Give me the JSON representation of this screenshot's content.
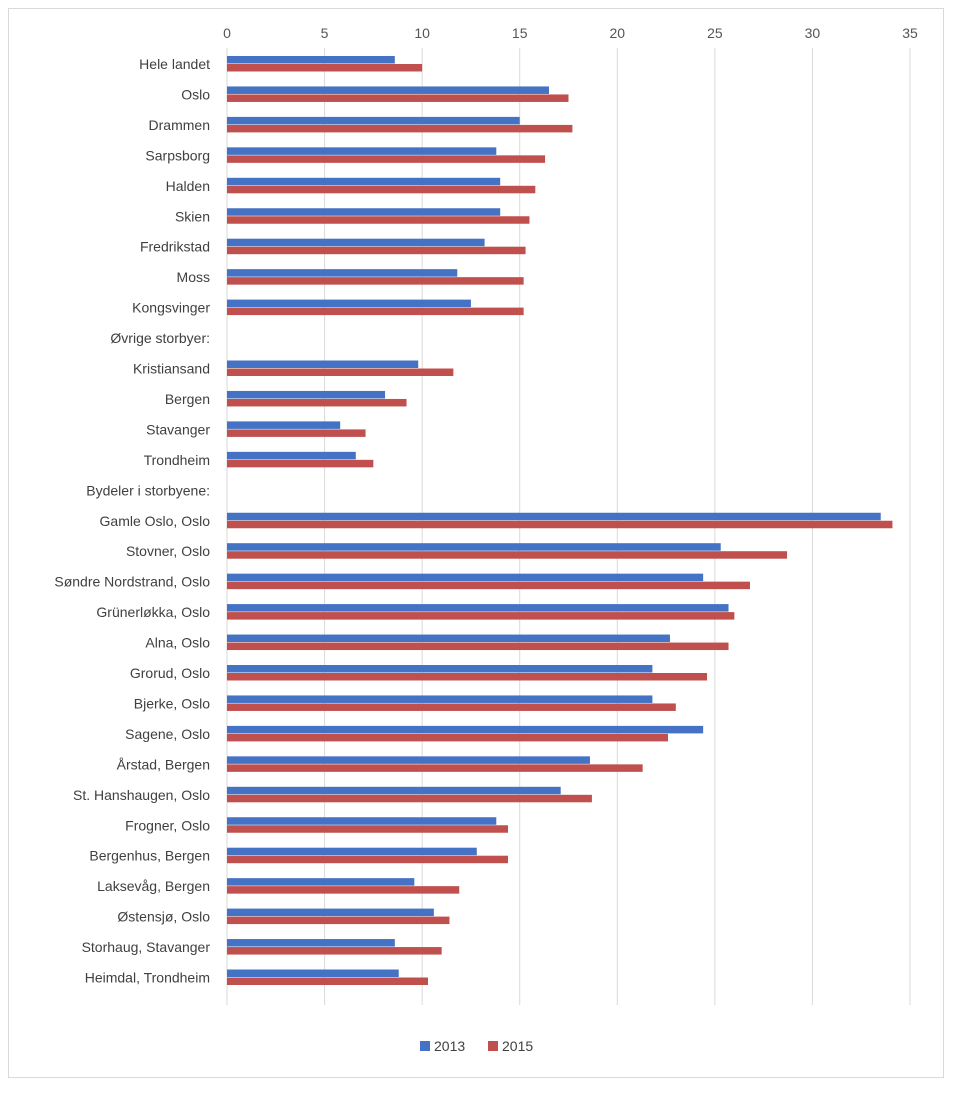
{
  "chart_data": {
    "type": "bar",
    "orientation": "horizontal",
    "title": "",
    "xlabel": "",
    "ylabel": "",
    "xlim": [
      0,
      35
    ],
    "xticks": [
      0,
      5,
      10,
      15,
      20,
      25,
      30,
      35
    ],
    "grid": "vertical",
    "legend_position": "bottom",
    "categories": [
      "Hele landet",
      "Oslo",
      "Drammen",
      "Sarpsborg",
      "Halden",
      "Skien",
      "Fredrikstad",
      "Moss",
      "Kongsvinger",
      "Øvrige storbyer:",
      "Kristiansand",
      "Bergen",
      "Stavanger",
      "Trondheim",
      "Bydeler i storbyene:",
      "Gamle Oslo, Oslo",
      "Stovner, Oslo",
      "Søndre Nordstrand, Oslo",
      "Grünerløkka, Oslo",
      "Alna, Oslo",
      "Grorud, Oslo",
      "Bjerke, Oslo",
      "Sagene, Oslo",
      "Årstad, Bergen",
      "St. Hanshaugen, Oslo",
      "Frogner, Oslo",
      "Bergenhus, Bergen",
      "Laksevåg, Bergen",
      "Østensjø, Oslo",
      "Storhaug, Stavanger",
      "Heimdal, Trondheim"
    ],
    "series": [
      {
        "name": "2013",
        "color": "#4472c4",
        "values": [
          8.6,
          16.5,
          15,
          13.8,
          14,
          14,
          13.2,
          11.8,
          12.5,
          null,
          9.8,
          8.1,
          5.8,
          6.6,
          null,
          33.5,
          25.3,
          24.4,
          25.7,
          22.7,
          21.8,
          21.8,
          24.4,
          18.6,
          17.1,
          13.8,
          12.8,
          9.6,
          10.6,
          8.6,
          8.8
        ]
      },
      {
        "name": "2015",
        "color": "#c0504d",
        "values": [
          10,
          17.5,
          17.7,
          16.3,
          15.8,
          15.5,
          15.3,
          15.2,
          15.2,
          null,
          11.6,
          9.2,
          7.1,
          7.5,
          null,
          34.1,
          28.7,
          26.8,
          26,
          25.7,
          24.6,
          23,
          22.6,
          21.3,
          18.7,
          14.4,
          14.4,
          11.9,
          11.4,
          11,
          10.3
        ]
      }
    ]
  }
}
